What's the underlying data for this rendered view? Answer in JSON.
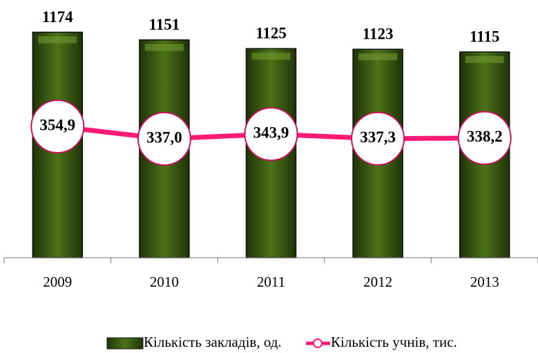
{
  "chart_data": {
    "type": "bar",
    "categories": [
      "2009",
      "2010",
      "2011",
      "2012",
      "2013"
    ],
    "series": [
      {
        "name": "Кількість закладів, од.",
        "color": "#3a5a12",
        "values": [
          1174,
          1151,
          1125,
          1123,
          1115
        ]
      },
      {
        "name": "Кількість учнів, тис.",
        "color": "#ff1a75",
        "type": "line",
        "axis": "y2",
        "values": [
          354.9,
          337.0,
          343.9,
          337.3,
          338.2
        ],
        "value_labels": [
          "354,9",
          "337,0",
          "343,9",
          "337,3",
          "338,2"
        ]
      }
    ],
    "ylim": [
      500,
      1200
    ],
    "y2lim": [
      165,
      504
    ],
    "legend": "bottom"
  }
}
